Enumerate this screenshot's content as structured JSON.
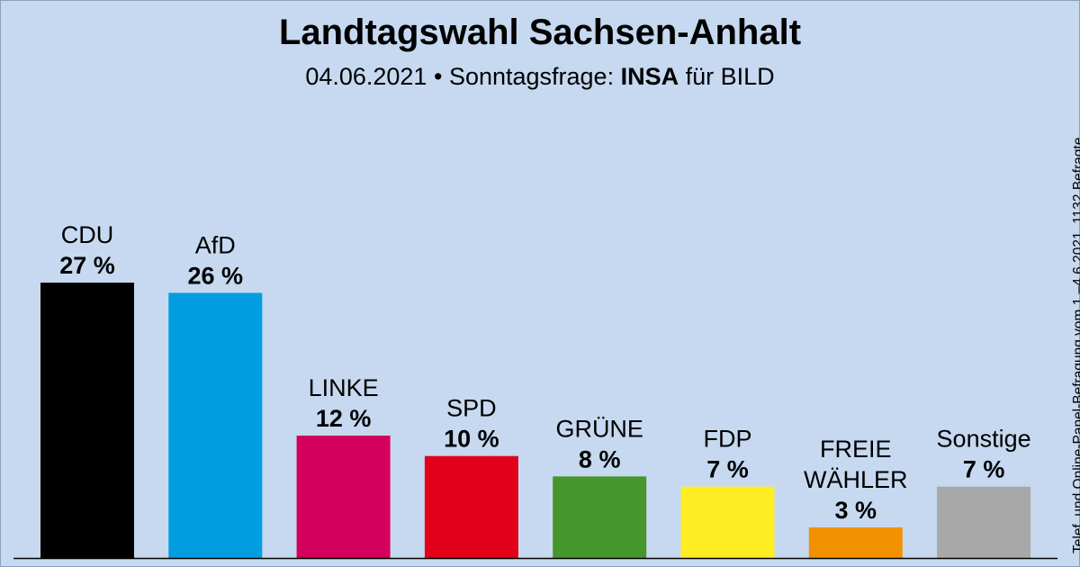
{
  "title": "Landtagswahl Sachsen-Anhalt",
  "subtitle": {
    "date": "04.06.2021",
    "separator": "•",
    "type": "Sonntagsfrage:",
    "institute": "INSA",
    "client": "für BILD"
  },
  "side_note": "Telef. und Online-Panel-Befragung vom 1.–4.6.2021, 1132 Befragte",
  "chart_data": {
    "type": "bar",
    "title": "Landtagswahl Sachsen-Anhalt",
    "categories": [
      "CDU",
      "AfD",
      "LINKE",
      "SPD",
      "GRÜNE",
      "FDP",
      "FREIE WÄHLER",
      "Sonstige"
    ],
    "category_lines": [
      [
        "CDU"
      ],
      [
        "AfD"
      ],
      [
        "LINKE"
      ],
      [
        "SPD"
      ],
      [
        "GRÜNE"
      ],
      [
        "FDP"
      ],
      [
        "FREIE",
        "WÄHLER"
      ],
      [
        "Sonstige"
      ]
    ],
    "values": [
      27,
      26,
      12,
      10,
      8,
      7,
      3,
      7
    ],
    "value_labels": [
      "27 %",
      "26 %",
      "12 %",
      "10 %",
      "8 %",
      "7 %",
      "3 %",
      "7 %"
    ],
    "colors": [
      "#000000",
      "#009ee0",
      "#d4005e",
      "#e3001b",
      "#46962b",
      "#ffed24",
      "#f29100",
      "#a8a8a8"
    ],
    "unit": "%",
    "ylim": [
      0,
      30
    ],
    "grid": false,
    "legend": "none"
  }
}
